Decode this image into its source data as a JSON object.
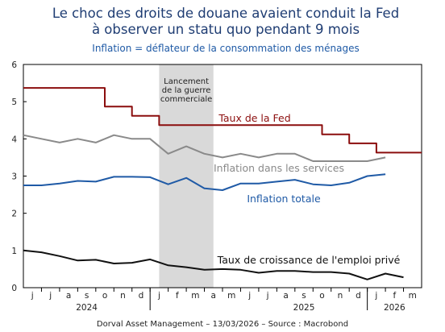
{
  "chart_data": {
    "type": "line",
    "title": "Le choc des droits de douane avaient conduit la Fed\nà observer un statu quo pendant 9 mois",
    "subtitle": "Inflation = déflateur de la consommation des ménages",
    "source": "Dorval Asset Management – 13/03/2026  –  Source : Macrobond",
    "x_ticks": [
      "j",
      "j",
      "a",
      "s",
      "o",
      "n",
      "d",
      "j",
      "f",
      "m",
      "a",
      "m",
      "j",
      "j",
      "a",
      "s",
      "o",
      "n",
      "d",
      "j",
      "f",
      "m"
    ],
    "year_labels": [
      {
        "label": "2024",
        "month_index": 3
      },
      {
        "label": "2025",
        "month_index": 15
      },
      {
        "label": "2026",
        "month_index": 20
      }
    ],
    "ylim": [
      0,
      6
    ],
    "yticks": [
      0,
      1,
      2,
      3,
      4,
      5,
      6
    ],
    "xlim": [
      -0.5,
      21.5
    ],
    "shaded_region": {
      "from": 7,
      "to": 10,
      "color": "#d9d9d9",
      "label": "Lancement\nde la guerre\ncommerciale"
    },
    "series": [
      {
        "name": "Taux de la Fed",
        "color": "#8b0d0d",
        "step": true,
        "x": [
          -0.5,
          4,
          4,
          5.5,
          5.5,
          7,
          7,
          16,
          16,
          17.5,
          17.5,
          19,
          19,
          21.5
        ],
        "values": [
          5.37,
          5.37,
          4.87,
          4.87,
          4.62,
          4.62,
          4.37,
          4.37,
          4.12,
          4.12,
          3.88,
          3.88,
          3.63,
          3.63
        ]
      },
      {
        "name": "Inflation dans les services",
        "color": "#8a8a8a",
        "x": [
          -0.5,
          0.5,
          1.5,
          2.5,
          3.5,
          4.5,
          5.5,
          6.5,
          7.5,
          8.5,
          9.5,
          10.5,
          11.5,
          12.5,
          13.5,
          14.5,
          15.5,
          16.5,
          17.5,
          18.5,
          19.5
        ],
        "values": [
          4.1,
          4.0,
          3.9,
          4.0,
          3.9,
          4.1,
          4.0,
          4.0,
          3.6,
          3.8,
          3.6,
          3.5,
          3.6,
          3.5,
          3.6,
          3.6,
          3.4,
          3.4,
          3.4,
          3.4,
          3.5
        ]
      },
      {
        "name": "Inflation totale",
        "color": "#1f5aa6",
        "x": [
          -0.5,
          0.5,
          1.5,
          2.5,
          3.5,
          4.5,
          5.5,
          6.5,
          7.5,
          8.5,
          9.5,
          10.5,
          11.5,
          12.5,
          13.5,
          14.5,
          15.5,
          16.5,
          17.5,
          18.5,
          19.5
        ],
        "values": [
          2.75,
          2.75,
          2.8,
          2.87,
          2.85,
          2.98,
          2.98,
          2.97,
          2.78,
          2.95,
          2.67,
          2.62,
          2.8,
          2.8,
          2.85,
          2.9,
          2.78,
          2.75,
          2.82,
          3.0,
          3.05
        ]
      },
      {
        "name": "Taux de croissance de l'emploi privé",
        "color": "#111111",
        "x": [
          -0.5,
          0.5,
          1.5,
          2.5,
          3.5,
          4.5,
          5.5,
          6.5,
          7.5,
          8.5,
          9.5,
          10.5,
          11.5,
          12.5,
          13.5,
          14.5,
          15.5,
          16.5,
          17.5,
          18.5,
          19.5,
          20.5
        ],
        "values": [
          1.0,
          0.95,
          0.85,
          0.73,
          0.75,
          0.65,
          0.67,
          0.76,
          0.6,
          0.55,
          0.48,
          0.5,
          0.48,
          0.4,
          0.45,
          0.45,
          0.42,
          0.42,
          0.38,
          0.22,
          0.38,
          0.28
        ]
      }
    ]
  }
}
